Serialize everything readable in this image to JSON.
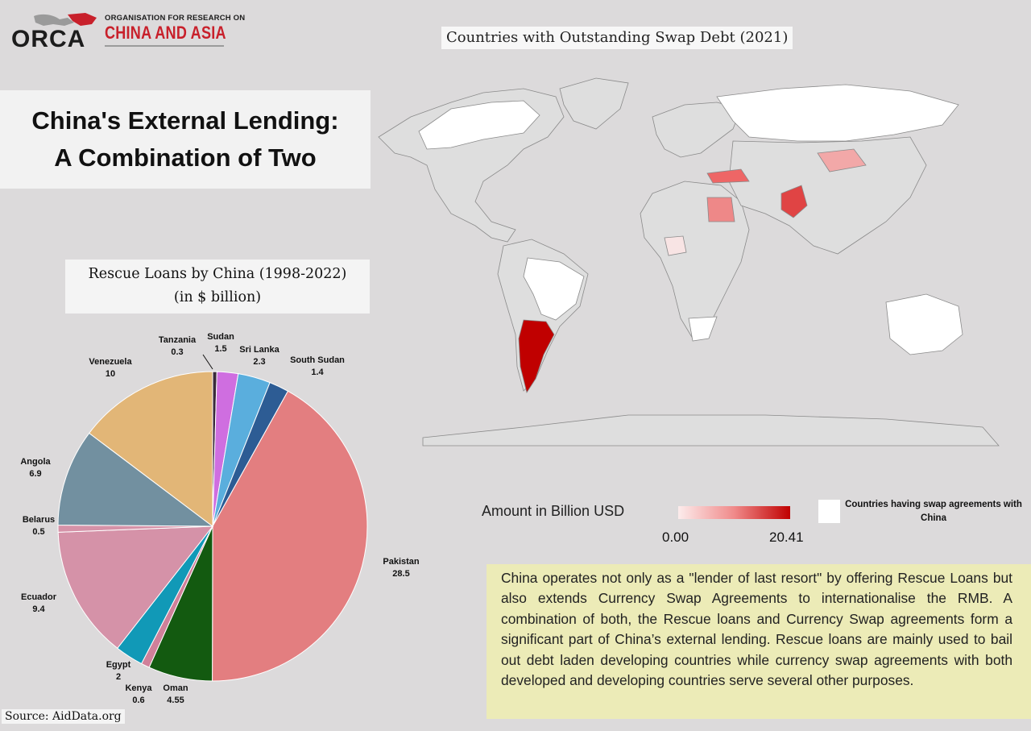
{
  "logo": {
    "wordmark": "ORCA",
    "line1": "ORGANISATION FOR RESEARCH ON",
    "line2": "CHINA AND ASIA"
  },
  "title": {
    "line1": "China's External Lending:",
    "line2": "A Combination of Two"
  },
  "map": {
    "title": "Countries with Outstanding Swap Debt (2021)",
    "legend_label": "Amount in Billion USD",
    "legend_min": "0.00",
    "legend_max": "20.41",
    "swap_label": "Countries having swap agreements with China",
    "colors": {
      "low": "#fcecec",
      "mid": "#f08a8a",
      "high": "#c00000",
      "land": "#dedede",
      "swap": "#ffffff",
      "border": "#8a8a8a"
    }
  },
  "description": "China operates not only as a \"lender of last resort\" by offering Rescue Loans but also extends Currency Swap Agreements to internationalise the RMB.  A combination of both, the Rescue loans and Currency Swap agreements form a significant part of China’s external lending. Rescue loans are mainly used to bail out debt laden developing countries while currency swap agreements with both developed and developing countries serve several other purposes.",
  "source": "Source: AidData.org",
  "chart_data": {
    "type": "pie",
    "title": "Rescue Loans by China (1998-2022)",
    "subtitle": "(in $ billion)",
    "categories": [
      "Tanzania",
      "Sudan",
      "Sri Lanka",
      "South Sudan",
      "Pakistan",
      "Oman",
      "Kenya",
      "Egypt",
      "Ecuador",
      "Belarus",
      "Angola",
      "Venezuela"
    ],
    "values": [
      0.3,
      1.5,
      2.3,
      1.4,
      28.5,
      4.55,
      0.6,
      2,
      9.4,
      0.5,
      6.9,
      10
    ],
    "value_labels": [
      "0.3",
      "1.5",
      "2.3",
      "1.4",
      "28.5",
      "4.55",
      "0.6",
      "2",
      "9.4",
      "0.5",
      "6.9",
      "10"
    ],
    "colors": [
      "#3a2a3a",
      "#cf6ee0",
      "#5aaedd",
      "#2d5c94",
      "#e37e80",
      "#135a10",
      "#d0809a",
      "#1199b7",
      "#d592a8",
      "#d592a8",
      "#7290a0",
      "#e2b677"
    ]
  }
}
